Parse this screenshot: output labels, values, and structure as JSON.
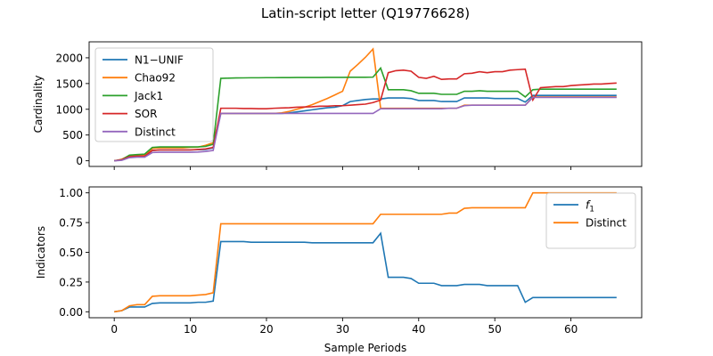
{
  "figure": {
    "suptitle": "Latin-script letter (Q19776628)"
  },
  "chart_data": [
    {
      "type": "line",
      "ylabel": "Cardinality",
      "xlabel": "",
      "xlim": [
        -3.3,
        69.3
      ],
      "ylim": [
        -110,
        2310
      ],
      "xticks": [
        0,
        10,
        20,
        30,
        40,
        50,
        60
      ],
      "yticks": [
        0,
        500,
        1000,
        1500,
        2000
      ],
      "show_xtick_labels": false,
      "legend": "upper-left",
      "x": [
        0,
        1,
        2,
        3,
        4,
        5,
        6,
        7,
        8,
        9,
        10,
        11,
        12,
        13,
        14,
        15,
        16,
        17,
        18,
        19,
        20,
        21,
        22,
        23,
        24,
        25,
        26,
        27,
        28,
        29,
        30,
        31,
        32,
        33,
        34,
        35,
        36,
        37,
        38,
        39,
        40,
        41,
        42,
        43,
        44,
        45,
        46,
        47,
        48,
        49,
        50,
        51,
        52,
        53,
        54,
        55,
        56,
        57,
        58,
        59,
        60,
        61,
        62,
        63,
        64,
        65,
        66
      ],
      "series": [
        {
          "name": "N1−UNIF",
          "color": "#1f77b4",
          "values": [
            0,
            20,
            80,
            90,
            90,
            200,
            210,
            210,
            210,
            210,
            210,
            215,
            220,
            250,
            920,
            920,
            920,
            920,
            920,
            920,
            920,
            920,
            920,
            930,
            950,
            970,
            990,
            1010,
            1030,
            1040,
            1070,
            1150,
            1170,
            1190,
            1200,
            1200,
            1220,
            1220,
            1220,
            1210,
            1170,
            1170,
            1170,
            1150,
            1150,
            1150,
            1220,
            1220,
            1220,
            1220,
            1210,
            1210,
            1210,
            1210,
            1140,
            1270,
            1270,
            1270,
            1270,
            1270,
            1270,
            1270,
            1270,
            1270,
            1270,
            1270,
            1270
          ]
        },
        {
          "name": "Chao92",
          "color": "#ff7f0e",
          "values": [
            0,
            30,
            100,
            110,
            110,
            240,
            250,
            250,
            250,
            250,
            260,
            265,
            300,
            350,
            920,
            920,
            920,
            920,
            920,
            920,
            920,
            920,
            930,
            960,
            1000,
            1040,
            1090,
            1150,
            1210,
            1280,
            1350,
            1740,
            1870,
            2010,
            2170,
            1020,
            1020,
            1020,
            1020,
            1020,
            1020,
            1020,
            1020,
            1020,
            1020,
            1020,
            1080,
            1080,
            1080,
            1080,
            1080,
            1080,
            1080,
            1080,
            1080,
            1240,
            1240,
            1240,
            1240,
            1240,
            1240,
            1240,
            1240,
            1240,
            1240,
            1240,
            1240
          ]
        },
        {
          "name": "Jack1",
          "color": "#2ca02c",
          "values": [
            0,
            20,
            110,
            120,
            130,
            260,
            270,
            270,
            270,
            270,
            270,
            270,
            280,
            320,
            1600,
            1605,
            1608,
            1610,
            1612,
            1612,
            1614,
            1614,
            1615,
            1615,
            1617,
            1617,
            1618,
            1618,
            1620,
            1620,
            1620,
            1622,
            1622,
            1622,
            1625,
            1800,
            1380,
            1380,
            1380,
            1360,
            1310,
            1310,
            1310,
            1290,
            1290,
            1290,
            1350,
            1350,
            1360,
            1350,
            1350,
            1350,
            1350,
            1350,
            1240,
            1380,
            1390,
            1390,
            1390,
            1390,
            1390,
            1390,
            1390,
            1390,
            1390,
            1390,
            1390
          ]
        },
        {
          "name": "SOR",
          "color": "#d62728",
          "values": [
            0,
            20,
            80,
            90,
            90,
            200,
            210,
            210,
            210,
            210,
            210,
            220,
            230,
            260,
            1020,
            1020,
            1020,
            1015,
            1015,
            1010,
            1010,
            1020,
            1025,
            1030,
            1040,
            1045,
            1050,
            1060,
            1060,
            1070,
            1070,
            1080,
            1090,
            1100,
            1130,
            1180,
            1710,
            1750,
            1760,
            1740,
            1620,
            1600,
            1640,
            1580,
            1590,
            1590,
            1690,
            1700,
            1730,
            1710,
            1730,
            1730,
            1760,
            1770,
            1780,
            1180,
            1420,
            1430,
            1440,
            1440,
            1460,
            1470,
            1480,
            1490,
            1490,
            1500,
            1510
          ]
        },
        {
          "name": "Distinct",
          "color": "#9467bd",
          "values": [
            0,
            10,
            60,
            70,
            70,
            160,
            165,
            165,
            165,
            165,
            165,
            170,
            180,
            200,
            920,
            920,
            920,
            920,
            920,
            920,
            920,
            920,
            920,
            920,
            920,
            920,
            920,
            920,
            920,
            920,
            920,
            920,
            920,
            920,
            920,
            1010,
            1010,
            1010,
            1010,
            1010,
            1010,
            1010,
            1010,
            1010,
            1020,
            1020,
            1070,
            1080,
            1080,
            1080,
            1080,
            1080,
            1080,
            1080,
            1080,
            1230,
            1230,
            1230,
            1230,
            1230,
            1230,
            1230,
            1230,
            1230,
            1230,
            1230,
            1230
          ]
        }
      ]
    },
    {
      "type": "line",
      "ylabel": "Indicators",
      "xlabel": "Sample Periods",
      "xlim": [
        -3.3,
        69.3
      ],
      "ylim": [
        -0.05,
        1.05
      ],
      "xticks": [
        0,
        10,
        20,
        30,
        40,
        50,
        60
      ],
      "yticks": [
        0.0,
        0.25,
        0.5,
        0.75,
        1.0
      ],
      "ytick_labels": [
        "0.00",
        "0.25",
        "0.50",
        "0.75",
        "1.00"
      ],
      "show_xtick_labels": true,
      "legend": "upper-right",
      "x": [
        0,
        1,
        2,
        3,
        4,
        5,
        6,
        7,
        8,
        9,
        10,
        11,
        12,
        13,
        14,
        15,
        16,
        17,
        18,
        19,
        20,
        21,
        22,
        23,
        24,
        25,
        26,
        27,
        28,
        29,
        30,
        31,
        32,
        33,
        34,
        35,
        36,
        37,
        38,
        39,
        40,
        41,
        42,
        43,
        44,
        45,
        46,
        47,
        48,
        49,
        50,
        51,
        52,
        53,
        54,
        55,
        56,
        57,
        58,
        59,
        60,
        61,
        62,
        63,
        64,
        65,
        66
      ],
      "series": [
        {
          "name": "f",
          "name_subscript": "1",
          "color": "#1f77b4",
          "values": [
            0,
            0.01,
            0.04,
            0.04,
            0.04,
            0.07,
            0.075,
            0.075,
            0.075,
            0.075,
            0.075,
            0.08,
            0.08,
            0.09,
            0.59,
            0.59,
            0.59,
            0.59,
            0.585,
            0.585,
            0.585,
            0.585,
            0.585,
            0.585,
            0.585,
            0.585,
            0.58,
            0.58,
            0.58,
            0.58,
            0.58,
            0.58,
            0.58,
            0.58,
            0.58,
            0.66,
            0.29,
            0.29,
            0.29,
            0.28,
            0.24,
            0.24,
            0.24,
            0.22,
            0.22,
            0.22,
            0.23,
            0.23,
            0.23,
            0.22,
            0.22,
            0.22,
            0.22,
            0.22,
            0.08,
            0.12,
            0.12,
            0.12,
            0.12,
            0.12,
            0.12,
            0.12,
            0.12,
            0.12,
            0.12,
            0.12,
            0.12
          ]
        },
        {
          "name": "Distinct",
          "color": "#ff7f0e",
          "values": [
            0,
            0.01,
            0.05,
            0.06,
            0.06,
            0.13,
            0.135,
            0.135,
            0.135,
            0.135,
            0.135,
            0.14,
            0.145,
            0.16,
            0.74,
            0.74,
            0.74,
            0.74,
            0.74,
            0.74,
            0.74,
            0.74,
            0.74,
            0.74,
            0.74,
            0.74,
            0.74,
            0.74,
            0.74,
            0.74,
            0.74,
            0.74,
            0.74,
            0.74,
            0.74,
            0.82,
            0.82,
            0.82,
            0.82,
            0.82,
            0.82,
            0.82,
            0.82,
            0.82,
            0.83,
            0.83,
            0.87,
            0.875,
            0.875,
            0.875,
            0.875,
            0.875,
            0.875,
            0.875,
            0.875,
            1.0,
            1.0,
            1.0,
            1.0,
            1.0,
            1.0,
            1.0,
            1.0,
            1.0,
            1.0,
            1.0,
            1.0
          ]
        }
      ]
    }
  ]
}
